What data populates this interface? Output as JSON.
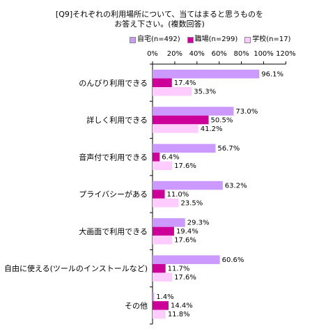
{
  "chart_data": {
    "type": "bar",
    "orientation": "horizontal",
    "title_lines": [
      "[Q9]それぞれの利用場所について、当てはまると思うものを",
      "お答え下さい。(複数回答)"
    ],
    "categories": [
      "のんびり利用できる",
      "詳しく利用できる",
      "音声付で利用できる",
      "プライバシーがある",
      "大画面で利用できる",
      "自由に使える(ツールのインストールなど)",
      "その他"
    ],
    "series": [
      {
        "name": "自宅(n=492)",
        "color": "#cc99ff",
        "values": [
          96.1,
          73.0,
          56.7,
          63.2,
          29.3,
          60.6,
          1.4
        ]
      },
      {
        "name": "職場(n=299)",
        "color": "#cc0099",
        "values": [
          17.4,
          50.5,
          6.4,
          11.0,
          19.4,
          11.7,
          14.4
        ]
      },
      {
        "name": "学校(n=17)",
        "color": "#ffccff",
        "values": [
          35.3,
          41.2,
          17.6,
          23.5,
          17.6,
          17.6,
          11.8
        ]
      }
    ],
    "xlim": [
      0,
      120
    ],
    "xticks": [
      "0%",
      "20%",
      "40%",
      "60%",
      "80%",
      "100%",
      "120%"
    ],
    "value_suffix": "%",
    "legend_position": "top",
    "grid": false
  }
}
